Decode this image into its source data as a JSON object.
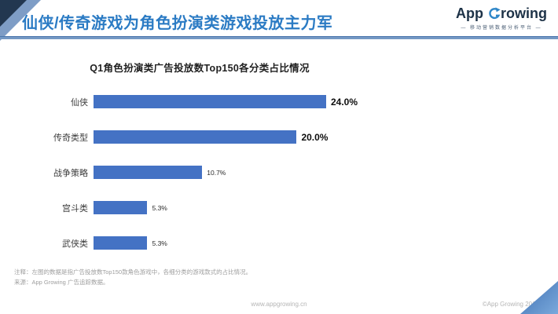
{
  "header": {
    "title": "仙侠/传奇游戏为角色扮演类游戏投放主力军",
    "logo": {
      "full_text": "App Growing",
      "app": "App",
      "g_rest": "rowing",
      "tagline": "— 移动营销数据分析平台 —"
    }
  },
  "chart_data": {
    "type": "bar",
    "orientation": "horizontal",
    "title": "Q1角色扮演类广告投放数Top150各分类占比情况",
    "categories": [
      "仙侠",
      "传奇类型",
      "战争策略",
      "宫斗类",
      "武侠类"
    ],
    "values": [
      24.0,
      20.0,
      10.7,
      5.3,
      5.3
    ],
    "value_labels": [
      "24.0%",
      "20.0%",
      "10.7%",
      "5.3%",
      "5.3%"
    ],
    "emphasized_labels": [
      true,
      true,
      false,
      false,
      false
    ],
    "xlim": [
      0,
      26
    ],
    "grid": false,
    "legend": "none",
    "bar_color": "#4472c4"
  },
  "notes": {
    "line1": "注释：左图的数据是指广告投放数Top150款角色游戏中，各细分类的游戏款式的占比情况。",
    "line2": "来源：App Growing 广告追踪数据。"
  },
  "footer": {
    "url": "www.appgrowing.cn",
    "copyright": "©App Growing 2018"
  },
  "colors": {
    "accent_blue": "#2b7bc4",
    "bar_blue": "#4472c4",
    "navy": "#223750",
    "steel_blue": "#7e9dc6",
    "divider_blue": "#7498c4",
    "note_gray": "#9e9e9e",
    "footer_gray": "#b5b5b5"
  }
}
